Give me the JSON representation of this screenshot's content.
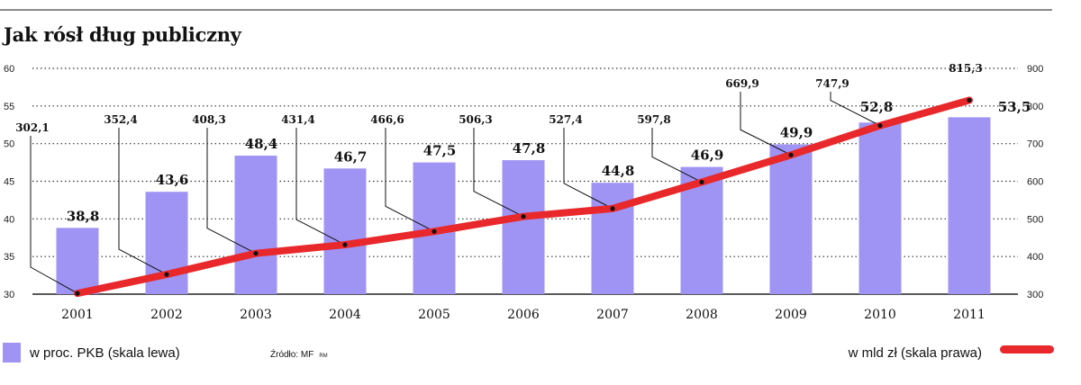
{
  "title": "Jak rósł dług publiczny",
  "legend": {
    "bars": "w proc. PKB (skala lewa)",
    "line": "w mld zł (skala prawa)"
  },
  "source": "Źródło: MF",
  "source_tag": "RM",
  "colors": {
    "bar": "#9f94f4",
    "line": "#e8282b",
    "grid": "#333333",
    "leader": "#111111"
  },
  "chart_data": {
    "type": "bar+line",
    "categories": [
      "2001",
      "2002",
      "2003",
      "2004",
      "2005",
      "2006",
      "2007",
      "2008",
      "2009",
      "2010",
      "2011"
    ],
    "series": [
      {
        "name": "w proc. PKB (skala lewa)",
        "axis": "left",
        "kind": "bar",
        "values": [
          38.8,
          43.6,
          48.4,
          46.7,
          47.5,
          47.8,
          44.8,
          46.9,
          49.9,
          52.8,
          53.5
        ],
        "labels": [
          "38,8",
          "43,6",
          "48,4",
          "46,7",
          "47,5",
          "47,8",
          "44,8",
          "46,9",
          "49,9",
          "52,8",
          "53,5"
        ]
      },
      {
        "name": "w mld zł (skala prawa)",
        "axis": "right",
        "kind": "line",
        "values": [
          302.1,
          352.4,
          408.3,
          431.4,
          466.6,
          506.3,
          527.4,
          597.8,
          669.9,
          747.9,
          815.3
        ],
        "labels": [
          "302,1",
          "352,4",
          "408,3",
          "431,4",
          "466,6",
          "506,3",
          "527,4",
          "597,8",
          "669,9",
          "747,9",
          "815,3"
        ]
      }
    ],
    "left_axis": {
      "range": [
        30,
        60
      ],
      "ticks": [
        "30",
        "35",
        "40",
        "45",
        "50",
        "55",
        "60"
      ]
    },
    "right_axis": {
      "range": [
        300,
        900
      ],
      "ticks": [
        "300",
        "400",
        "500",
        "600",
        "700",
        "800",
        "900"
      ]
    },
    "grid": "dotted"
  }
}
